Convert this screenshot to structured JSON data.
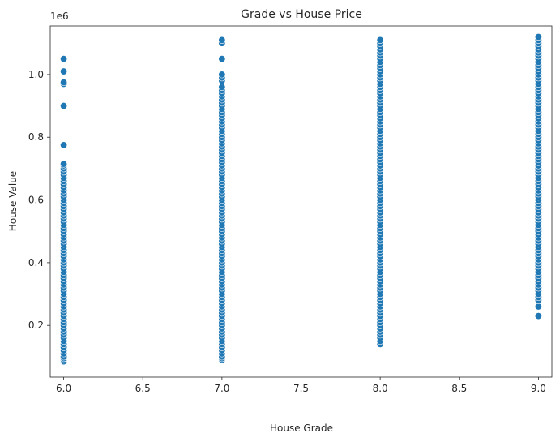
{
  "chart_data": {
    "type": "scatter",
    "title": "Grade vs House Price",
    "xlabel": "House Grade",
    "ylabel": "House Value",
    "y_offset_label": "1e6",
    "xlim": [
      5.915,
      9.085
    ],
    "ylim": [
      0.035,
      1.155
    ],
    "x_ticks": [
      6.0,
      6.5,
      7.0,
      7.5,
      8.0,
      8.5,
      9.0
    ],
    "x_tick_labels": [
      "6.0",
      "6.5",
      "7.0",
      "7.5",
      "8.0",
      "8.5",
      "9.0"
    ],
    "y_ticks": [
      0.2,
      0.4,
      0.6,
      0.8,
      1.0
    ],
    "y_tick_labels": [
      "0.2",
      "0.4",
      "0.6",
      "0.8",
      "1.0"
    ],
    "grid": false,
    "marker_color": "#1f77b4",
    "series": [
      {
        "x_value": 6.0,
        "values": [
          0.085,
          0.09,
          0.095,
          0.1,
          0.11,
          0.12,
          0.13,
          0.14,
          0.15,
          0.16,
          0.17,
          0.18,
          0.19,
          0.2,
          0.21,
          0.22,
          0.23,
          0.24,
          0.25,
          0.26,
          0.27,
          0.28,
          0.29,
          0.3,
          0.31,
          0.32,
          0.33,
          0.34,
          0.35,
          0.36,
          0.37,
          0.38,
          0.39,
          0.4,
          0.41,
          0.42,
          0.43,
          0.44,
          0.45,
          0.46,
          0.47,
          0.48,
          0.49,
          0.5,
          0.51,
          0.52,
          0.53,
          0.54,
          0.55,
          0.56,
          0.57,
          0.58,
          0.59,
          0.6,
          0.61,
          0.62,
          0.63,
          0.64,
          0.65,
          0.66,
          0.67,
          0.68,
          0.69,
          0.7,
          0.71,
          0.715,
          0.775,
          0.9,
          0.97,
          0.975,
          1.01,
          1.05
        ]
      },
      {
        "x_value": 7.0,
        "values": [
          0.09,
          0.095,
          0.1,
          0.11,
          0.12,
          0.13,
          0.14,
          0.15,
          0.16,
          0.17,
          0.18,
          0.19,
          0.2,
          0.21,
          0.22,
          0.23,
          0.24,
          0.25,
          0.26,
          0.27,
          0.28,
          0.29,
          0.3,
          0.31,
          0.32,
          0.33,
          0.34,
          0.35,
          0.36,
          0.37,
          0.38,
          0.39,
          0.4,
          0.41,
          0.42,
          0.43,
          0.44,
          0.45,
          0.46,
          0.47,
          0.48,
          0.49,
          0.5,
          0.51,
          0.52,
          0.53,
          0.54,
          0.55,
          0.56,
          0.57,
          0.58,
          0.59,
          0.6,
          0.61,
          0.62,
          0.63,
          0.64,
          0.65,
          0.66,
          0.67,
          0.68,
          0.69,
          0.7,
          0.71,
          0.72,
          0.73,
          0.74,
          0.75,
          0.76,
          0.77,
          0.78,
          0.79,
          0.8,
          0.81,
          0.82,
          0.83,
          0.84,
          0.85,
          0.86,
          0.87,
          0.88,
          0.89,
          0.9,
          0.91,
          0.92,
          0.93,
          0.94,
          0.95,
          0.96,
          0.98,
          0.99,
          1.0,
          1.05,
          1.1,
          1.11
        ]
      },
      {
        "x_value": 8.0,
        "values": [
          0.14,
          0.15,
          0.16,
          0.17,
          0.18,
          0.19,
          0.2,
          0.21,
          0.22,
          0.23,
          0.24,
          0.25,
          0.26,
          0.27,
          0.28,
          0.29,
          0.3,
          0.31,
          0.32,
          0.33,
          0.34,
          0.35,
          0.36,
          0.37,
          0.38,
          0.39,
          0.4,
          0.41,
          0.42,
          0.43,
          0.44,
          0.45,
          0.46,
          0.47,
          0.48,
          0.49,
          0.5,
          0.51,
          0.52,
          0.53,
          0.54,
          0.55,
          0.56,
          0.57,
          0.58,
          0.59,
          0.6,
          0.61,
          0.62,
          0.63,
          0.64,
          0.65,
          0.66,
          0.67,
          0.68,
          0.69,
          0.7,
          0.71,
          0.72,
          0.73,
          0.74,
          0.75,
          0.76,
          0.77,
          0.78,
          0.79,
          0.8,
          0.81,
          0.82,
          0.83,
          0.84,
          0.85,
          0.86,
          0.87,
          0.88,
          0.89,
          0.9,
          0.91,
          0.92,
          0.93,
          0.94,
          0.95,
          0.96,
          0.97,
          0.98,
          0.99,
          1.0,
          1.01,
          1.02,
          1.03,
          1.04,
          1.05,
          1.06,
          1.07,
          1.08,
          1.09,
          1.1,
          1.11
        ]
      },
      {
        "x_value": 9.0,
        "values": [
          0.23,
          0.26,
          0.28,
          0.29,
          0.3,
          0.31,
          0.32,
          0.33,
          0.34,
          0.35,
          0.36,
          0.37,
          0.38,
          0.39,
          0.4,
          0.41,
          0.42,
          0.43,
          0.44,
          0.45,
          0.46,
          0.47,
          0.48,
          0.49,
          0.5,
          0.51,
          0.52,
          0.53,
          0.54,
          0.55,
          0.56,
          0.57,
          0.58,
          0.59,
          0.6,
          0.61,
          0.62,
          0.63,
          0.64,
          0.65,
          0.66,
          0.67,
          0.68,
          0.69,
          0.7,
          0.71,
          0.72,
          0.73,
          0.74,
          0.75,
          0.76,
          0.77,
          0.78,
          0.79,
          0.8,
          0.81,
          0.82,
          0.83,
          0.84,
          0.85,
          0.86,
          0.87,
          0.88,
          0.89,
          0.9,
          0.91,
          0.92,
          0.93,
          0.94,
          0.95,
          0.96,
          0.97,
          0.98,
          0.99,
          1.0,
          1.01,
          1.02,
          1.03,
          1.04,
          1.05,
          1.06,
          1.07,
          1.08,
          1.09,
          1.1,
          1.11,
          1.12
        ]
      }
    ]
  }
}
